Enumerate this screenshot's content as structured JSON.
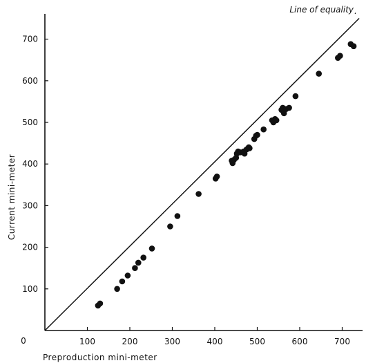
{
  "chart_data": {
    "type": "scatter",
    "title": "",
    "xlabel": "Preproduction mini-meter",
    "ylabel": "Current mini-meter",
    "xlim": [
      0,
      740
    ],
    "ylim": [
      0,
      750
    ],
    "xticks": [
      100,
      200,
      300,
      400,
      500,
      600,
      700
    ],
    "yticks": [
      100,
      200,
      300,
      400,
      500,
      600,
      700
    ],
    "origin_label": "0",
    "grid": false,
    "annotations": [
      {
        "text": "Line of equality",
        "type": "identity-line",
        "from": [
          0,
          0
        ],
        "to": [
          740,
          750
        ]
      }
    ],
    "series": [
      {
        "marker": "filled-circle",
        "color": "#111111",
        "points": [
          [
            125,
            60
          ],
          [
            130,
            65
          ],
          [
            170,
            100
          ],
          [
            182,
            118
          ],
          [
            195,
            132
          ],
          [
            212,
            150
          ],
          [
            220,
            163
          ],
          [
            232,
            175
          ],
          [
            252,
            197
          ],
          [
            295,
            250
          ],
          [
            312,
            275
          ],
          [
            362,
            328
          ],
          [
            402,
            365
          ],
          [
            405,
            370
          ],
          [
            440,
            408
          ],
          [
            442,
            402
          ],
          [
            445,
            410
          ],
          [
            450,
            415
          ],
          [
            452,
            425
          ],
          [
            455,
            430
          ],
          [
            460,
            428
          ],
          [
            468,
            430
          ],
          [
            470,
            425
          ],
          [
            475,
            435
          ],
          [
            480,
            440
          ],
          [
            482,
            438
          ],
          [
            493,
            460
          ],
          [
            497,
            468
          ],
          [
            500,
            470
          ],
          [
            515,
            483
          ],
          [
            535,
            505
          ],
          [
            538,
            500
          ],
          [
            542,
            508
          ],
          [
            545,
            505
          ],
          [
            557,
            530
          ],
          [
            560,
            535
          ],
          [
            563,
            522
          ],
          [
            568,
            532
          ],
          [
            575,
            535
          ],
          [
            590,
            563
          ],
          [
            645,
            617
          ],
          [
            690,
            655
          ],
          [
            695,
            660
          ],
          [
            720,
            688
          ],
          [
            727,
            683
          ]
        ]
      }
    ]
  }
}
